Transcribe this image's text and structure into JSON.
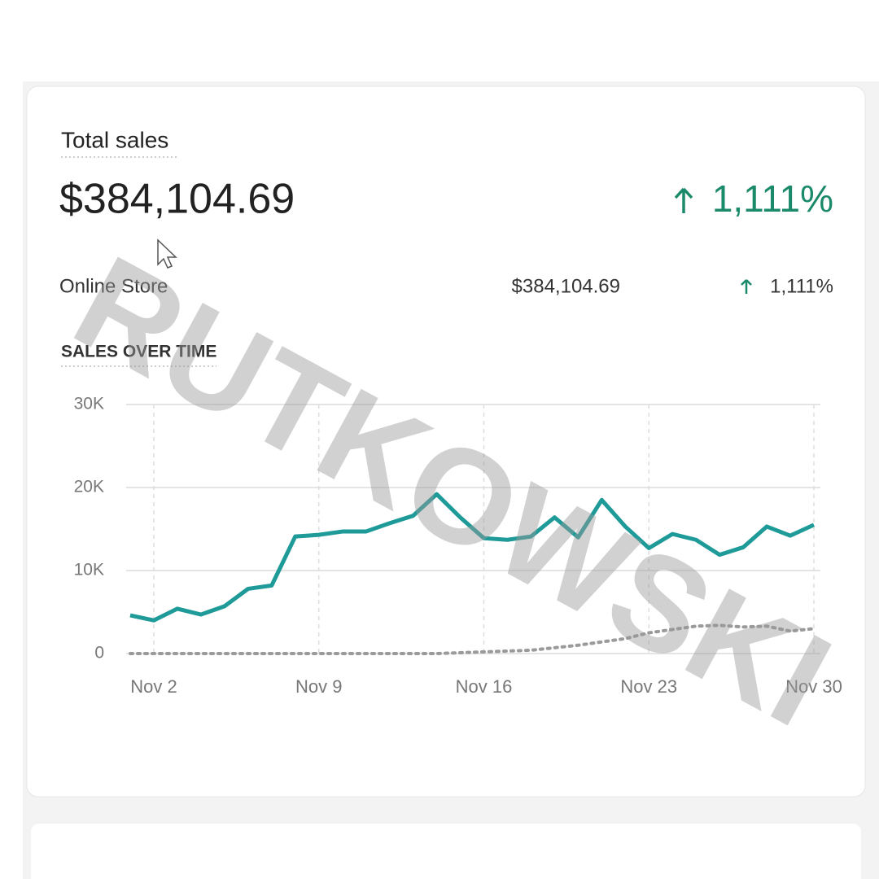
{
  "header": {
    "title": "Total sales",
    "total": "$384,104.69",
    "change": "1,111%"
  },
  "breakdown": {
    "channel": "Online Store",
    "amount": "$384,104.69",
    "change": "1,111%"
  },
  "section_title": "SALES OVER TIME",
  "watermark": "RUTKOWSKI",
  "chart_data": {
    "type": "line",
    "categories": [
      null,
      "Nov 2",
      null,
      null,
      null,
      null,
      null,
      null,
      "Nov 9",
      null,
      null,
      null,
      null,
      null,
      null,
      "Nov 16",
      null,
      null,
      null,
      null,
      null,
      null,
      "Nov 23",
      null,
      null,
      null,
      null,
      null,
      null,
      "Nov 30"
    ],
    "series": [
      {
        "color": "#1e9a98",
        "style": "solid",
        "values": [
          4600,
          4000,
          5400,
          4700,
          5700,
          7800,
          8200,
          14100,
          14300,
          14700,
          14700,
          15700,
          16600,
          19200,
          16400,
          13900,
          13700,
          14100,
          16400,
          14000,
          18500,
          15300,
          12700,
          14400,
          13700,
          11900,
          12800,
          15300,
          14200,
          15500
        ]
      },
      {
        "color": "#9a9a9a",
        "style": "dotted",
        "values": [
          0,
          0,
          0,
          0,
          0,
          0,
          0,
          0,
          0,
          0,
          0,
          0,
          0,
          0,
          100,
          200,
          300,
          400,
          700,
          1000,
          1400,
          1800,
          2500,
          2900,
          3300,
          3400,
          3200,
          3300,
          2700,
          3000
        ]
      }
    ],
    "ylim": [
      0,
      30000
    ],
    "yticks": [
      0,
      {
        "value": 10000,
        "label": "10K"
      },
      {
        "value": 20000,
        "label": "20K"
      },
      {
        "value": 30000,
        "label": "30K"
      }
    ],
    "grid": true
  }
}
